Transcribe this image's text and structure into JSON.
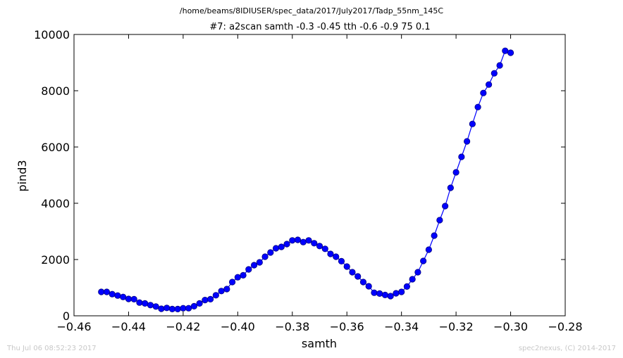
{
  "colors": {
    "series": "#0000ff",
    "marker_fill": "#0000ff",
    "marker_edge": "#000080",
    "footer_text": "#c8c8c8",
    "frame": "#000000"
  },
  "header": {
    "path": "/home/beams/8IDIUSER/spec_data/2017/July2017/Tadp_55nm_145C"
  },
  "footer": {
    "left": "Thu Jul 06 08:52:23 2017",
    "right": "spec2nexus, (C) 2014-2017"
  },
  "chart_data": {
    "type": "line",
    "title": "#7: a2scan  samth -0.3 -0.45  tth -0.6 -0.9  75 0.1",
    "xlabel": "samth",
    "ylabel": "pind3",
    "xlim": [
      -0.46,
      -0.28
    ],
    "ylim": [
      0,
      10000
    ],
    "xticks": [
      -0.46,
      -0.44,
      -0.42,
      -0.4,
      -0.38,
      -0.36,
      -0.34,
      -0.32,
      -0.3,
      -0.28
    ],
    "xtick_labels": [
      "−0.46",
      "−0.44",
      "−0.42",
      "−0.40",
      "−0.38",
      "−0.36",
      "−0.34",
      "−0.32",
      "−0.30",
      "−0.28"
    ],
    "yticks": [
      0,
      2000,
      4000,
      6000,
      8000,
      10000
    ],
    "ytick_labels": [
      "0",
      "2000",
      "4000",
      "6000",
      "8000",
      "10000"
    ],
    "grid": false,
    "marker": "circle",
    "series": [
      {
        "x": [
          -0.45,
          -0.448,
          -0.446,
          -0.444,
          -0.442,
          -0.44,
          -0.438,
          -0.436,
          -0.434,
          -0.432,
          -0.43,
          -0.428,
          -0.426,
          -0.424,
          -0.422,
          -0.42,
          -0.418,
          -0.416,
          -0.414,
          -0.412,
          -0.41,
          -0.408,
          -0.406,
          -0.404,
          -0.402,
          -0.4,
          -0.398,
          -0.396,
          -0.394,
          -0.392,
          -0.39,
          -0.388,
          -0.386,
          -0.384,
          -0.382,
          -0.38,
          -0.378,
          -0.376,
          -0.374,
          -0.372,
          -0.37,
          -0.368,
          -0.366,
          -0.364,
          -0.362,
          -0.36,
          -0.358,
          -0.356,
          -0.354,
          -0.352,
          -0.35,
          -0.348,
          -0.346,
          -0.344,
          -0.342,
          -0.34,
          -0.338,
          -0.336,
          -0.334,
          -0.332,
          -0.33,
          -0.328,
          -0.326,
          -0.324,
          -0.322,
          -0.32,
          -0.318,
          -0.316,
          -0.314,
          -0.312,
          -0.31,
          -0.308,
          -0.306,
          -0.304,
          -0.302,
          -0.3
        ],
        "y": [
          850,
          850,
          770,
          720,
          670,
          600,
          590,
          470,
          440,
          380,
          330,
          250,
          280,
          240,
          240,
          270,
          270,
          340,
          440,
          560,
          590,
          730,
          880,
          950,
          1200,
          1370,
          1440,
          1650,
          1800,
          1900,
          2100,
          2250,
          2400,
          2450,
          2550,
          2680,
          2700,
          2620,
          2680,
          2580,
          2480,
          2380,
          2200,
          2100,
          1940,
          1750,
          1550,
          1400,
          1200,
          1050,
          820,
          790,
          740,
          700,
          800,
          850,
          1040,
          1300,
          1550,
          1950,
          2350,
          2850,
          3400,
          3900,
          4550,
          5100,
          5650,
          6200,
          6820,
          7420,
          7920,
          8220,
          8620,
          8900,
          9420,
          9350
        ]
      }
    ]
  }
}
